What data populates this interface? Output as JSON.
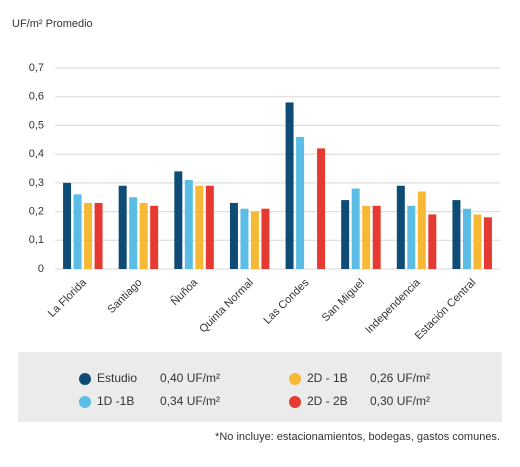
{
  "chart_data": {
    "type": "bar",
    "y_label": "UF/m² Promedio",
    "categories": [
      "La Florida",
      "Santiago",
      "Ñuñoa",
      "Quinta Normal",
      "Las Condes",
      "San Miguel",
      "Independencia",
      "Estación Central"
    ],
    "series": [
      {
        "name": "Estudio",
        "color": "#0f4c75",
        "summary": "0,40 UF/m²",
        "values": [
          0.3,
          0.29,
          0.34,
          0.23,
          0.58,
          0.24,
          0.29,
          0.24
        ]
      },
      {
        "name": "1D -1B",
        "color": "#5bbde6",
        "summary": "0,34 UF/m²",
        "values": [
          0.26,
          0.25,
          0.31,
          0.21,
          0.46,
          0.28,
          0.22,
          0.21
        ]
      },
      {
        "name": "2D - 1B",
        "color": "#f6b935",
        "summary": "0,26 UF/m²",
        "values": [
          0.23,
          0.23,
          0.29,
          0.2,
          null,
          0.22,
          0.27,
          0.19
        ]
      },
      {
        "name": "2D - 2B",
        "color": "#e53a31",
        "summary": "0,30 UF/m²",
        "values": [
          0.23,
          0.22,
          0.29,
          0.21,
          0.42,
          0.22,
          0.19,
          0.18
        ]
      }
    ],
    "ylim": [
      0,
      0.7
    ],
    "yticks": [
      0,
      {
        "value": 0.1,
        "label": "0,1"
      },
      {
        "value": 0.2,
        "label": "0,2"
      },
      {
        "value": 0.3,
        "label": "0,3"
      },
      {
        "value": 0.4,
        "label": "0,4"
      },
      {
        "value": 0.5,
        "label": "0,5"
      },
      {
        "value": 0.6,
        "label": "0,6"
      },
      {
        "value": 0.7,
        "label": "0,7"
      }
    ],
    "grid": true,
    "footnote": "*No incluye: estacionamientos, bodegas, gastos comunes."
  }
}
